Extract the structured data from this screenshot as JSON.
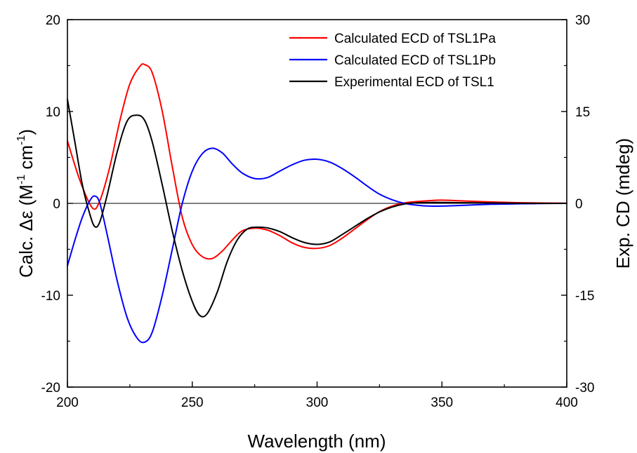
{
  "chart_data": {
    "type": "line",
    "x_axis": {
      "label": "Wavelength (nm)",
      "range": [
        200,
        400
      ],
      "ticks": [
        {
          "value": 200,
          "label": "200"
        },
        {
          "value": 250,
          "label": "250"
        },
        {
          "value": 300,
          "label": "300"
        },
        {
          "value": 350,
          "label": "350"
        },
        {
          "value": 400,
          "label": "400"
        }
      ]
    },
    "y_axis_left": {
      "label": "Calc. Δε (M⁻¹ cm⁻¹)",
      "label_parts": {
        "pre": "Calc. Δε (M",
        "sup1": "-1",
        "mid": " cm",
        "sup2": "-1",
        "post": ")"
      },
      "range": [
        -20,
        20
      ],
      "ticks": [
        {
          "value": 20,
          "label": "20"
        },
        {
          "value": 10,
          "label": "10"
        },
        {
          "value": 0,
          "label": "0"
        },
        {
          "value": -10,
          "label": "-10"
        },
        {
          "value": -20,
          "label": "-20"
        }
      ]
    },
    "y_axis_right": {
      "label": "Exp. CD (mdeg)",
      "range": [
        -30,
        30
      ],
      "ticks": [
        {
          "value": 30,
          "label": "30"
        },
        {
          "value": 15,
          "label": "15"
        },
        {
          "value": 0,
          "label": "0"
        },
        {
          "value": -15,
          "label": "-15"
        },
        {
          "value": -30,
          "label": "-30"
        }
      ]
    },
    "zero_line": true,
    "grid": false,
    "legend_position": "top-right",
    "series": [
      {
        "name": "Calculated ECD of TSL1Pa",
        "color": "#ff0000",
        "axis": "left",
        "x": [
          200,
          205,
          210,
          213,
          217,
          221,
          225,
          229,
          231,
          234,
          238,
          242,
          246,
          250,
          254,
          258,
          262,
          266,
          270,
          275,
          280,
          285,
          290,
          295,
          300,
          305,
          310,
          315,
          320,
          325,
          330,
          335,
          340,
          345,
          350,
          360,
          370,
          380,
          390,
          400
        ],
        "y": [
          6.8,
          2.5,
          -0.5,
          0.3,
          4.0,
          9.0,
          13.0,
          14.9,
          15.1,
          14.2,
          10.0,
          4.0,
          -1.5,
          -4.5,
          -5.8,
          -6.0,
          -5.2,
          -4.0,
          -3.0,
          -2.7,
          -2.9,
          -3.5,
          -4.3,
          -4.8,
          -4.9,
          -4.6,
          -3.8,
          -2.8,
          -1.8,
          -0.9,
          -0.3,
          0.05,
          0.2,
          0.3,
          0.35,
          0.25,
          0.15,
          0.08,
          0.04,
          0.02
        ]
      },
      {
        "name": "Calculated ECD of TSL1Pb",
        "color": "#0000ff",
        "axis": "left",
        "x": [
          200,
          203,
          206,
          209,
          211,
          213,
          216,
          220,
          224,
          228,
          231,
          234,
          238,
          242,
          246,
          250,
          254,
          258,
          262,
          266,
          270,
          275,
          280,
          285,
          290,
          295,
          300,
          305,
          310,
          315,
          320,
          325,
          330,
          335,
          340,
          345,
          350,
          360,
          370,
          380,
          390,
          400
        ],
        "y": [
          -6.8,
          -4.0,
          -1.5,
          0.3,
          0.8,
          0.0,
          -3.5,
          -8.5,
          -12.5,
          -14.7,
          -15.1,
          -14.0,
          -10.0,
          -5.0,
          0.0,
          3.5,
          5.4,
          6.0,
          5.5,
          4.3,
          3.3,
          2.7,
          2.8,
          3.5,
          4.2,
          4.7,
          4.8,
          4.5,
          3.8,
          2.9,
          1.9,
          1.0,
          0.4,
          0.0,
          -0.2,
          -0.3,
          -0.3,
          -0.2,
          -0.1,
          -0.05,
          -0.02,
          0.0
        ]
      },
      {
        "name": "Experimental ECD of TSL1",
        "color": "#000000",
        "axis": "right",
        "x": [
          200,
          203,
          206,
          209,
          211,
          213,
          216,
          220,
          224,
          228,
          231,
          234,
          238,
          242,
          246,
          250,
          253,
          256,
          260,
          264,
          268,
          272,
          276,
          280,
          285,
          290,
          295,
          300,
          305,
          310,
          315,
          320,
          325,
          330,
          335,
          340,
          345,
          350,
          360,
          370,
          380,
          390,
          400
        ],
        "y": [
          17.0,
          10.0,
          3.0,
          -1.8,
          -3.8,
          -3.0,
          1.5,
          8.5,
          13.5,
          14.4,
          13.5,
          10.0,
          3.0,
          -4.5,
          -11.0,
          -16.0,
          -18.3,
          -18.0,
          -14.5,
          -9.5,
          -6.0,
          -4.2,
          -3.9,
          -4.0,
          -4.6,
          -5.6,
          -6.4,
          -6.7,
          -6.3,
          -5.1,
          -3.8,
          -2.5,
          -1.4,
          -0.6,
          -0.1,
          0.1,
          0.15,
          0.15,
          0.1,
          0.05,
          0.02,
          0.0,
          0.0
        ]
      }
    ]
  }
}
